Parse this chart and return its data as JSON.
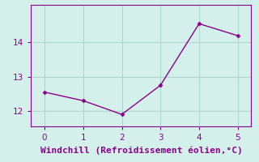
{
  "x": [
    0,
    1,
    2,
    3,
    4,
    5
  ],
  "y": [
    12.55,
    12.3,
    11.9,
    12.75,
    14.55,
    14.2
  ],
  "line_color": "#8B008B",
  "marker_color": "#8B008B",
  "bg_color": "#d4f0ea",
  "grid_color": "#aed4ce",
  "axis_color": "#8B008B",
  "tick_color": "#8B008B",
  "xlabel": "Windchill (Refroidissement éolien,°C)",
  "xlabel_fontsize": 8,
  "tick_fontsize": 7.5,
  "yticks": [
    12,
    13,
    14
  ],
  "xticks": [
    0,
    1,
    2,
    3,
    4,
    5
  ],
  "ylim": [
    11.55,
    15.1
  ],
  "xlim": [
    -0.35,
    5.35
  ]
}
